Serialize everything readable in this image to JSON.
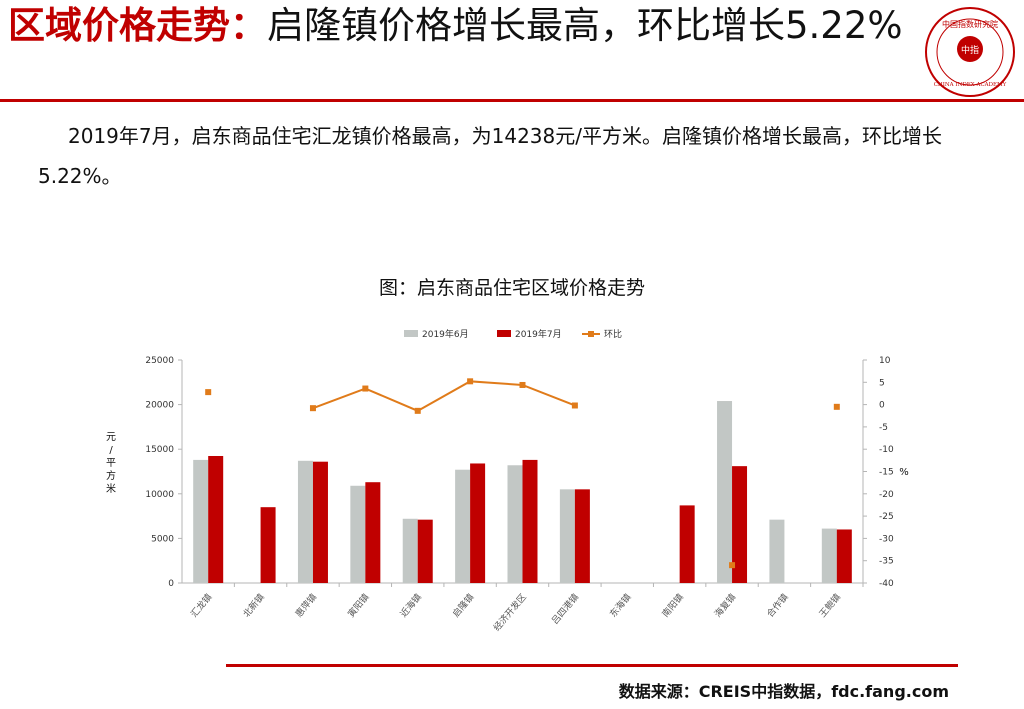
{
  "header": {
    "title_red": "区域价格走势：",
    "title_black": "启隆镇价格增长最高，环比增长5.22%",
    "logo_text": "中国指数研究院",
    "logo_center": "中指",
    "logo_en": "CHINA INDEX ACADEMY"
  },
  "summary": "2019年7月，启东商品住宅汇龙镇价格最高，为14238元/平方米。启隆镇价格增长最高，环比增长5.22%。",
  "source": "数据来源：CREIS中指数据，fdc.fang.com",
  "colors": {
    "accent": "#c00000",
    "jun": "#c2c7c5",
    "jul": "#c00000",
    "mom": "#e07b1a"
  },
  "chart_data": {
    "type": "bar",
    "title": "图：启东商品住宅区域价格走势",
    "categories": [
      "汇龙镇",
      "北新镇",
      "惠萍镇",
      "寅阳镇",
      "近海镇",
      "启隆镇",
      "经济开发区",
      "吕四港镇",
      "东海镇",
      "南阳镇",
      "海复镇",
      "合作镇",
      "王鲍镇"
    ],
    "series": [
      {
        "name": "2019年6月",
        "type": "bar",
        "axis": "left",
        "values": [
          13800,
          null,
          13700,
          10900,
          7200,
          12700,
          13200,
          10500,
          null,
          null,
          20400,
          7100,
          6100
        ]
      },
      {
        "name": "2019年7月",
        "type": "bar",
        "axis": "left",
        "values": [
          14238,
          8500,
          13600,
          11300,
          7100,
          13400,
          13800,
          10500,
          null,
          8700,
          13100,
          null,
          6000
        ]
      },
      {
        "name": "环比",
        "type": "line",
        "axis": "right",
        "values": [
          2.8,
          null,
          -0.8,
          3.6,
          -1.4,
          5.22,
          4.4,
          -0.2,
          null,
          null,
          -36,
          null,
          -0.5
        ]
      }
    ],
    "ylabel": "元/平方米",
    "y2label": "%",
    "ylim": [
      0,
      25000
    ],
    "yticks": [
      0,
      5000,
      10000,
      15000,
      20000,
      25000
    ],
    "y2lim": [
      -40,
      10
    ],
    "y2ticks": [
      10,
      5,
      0,
      -5,
      -10,
      -15,
      -20,
      -25,
      -30,
      -35,
      -40
    ],
    "legend": "top",
    "grid": false
  }
}
